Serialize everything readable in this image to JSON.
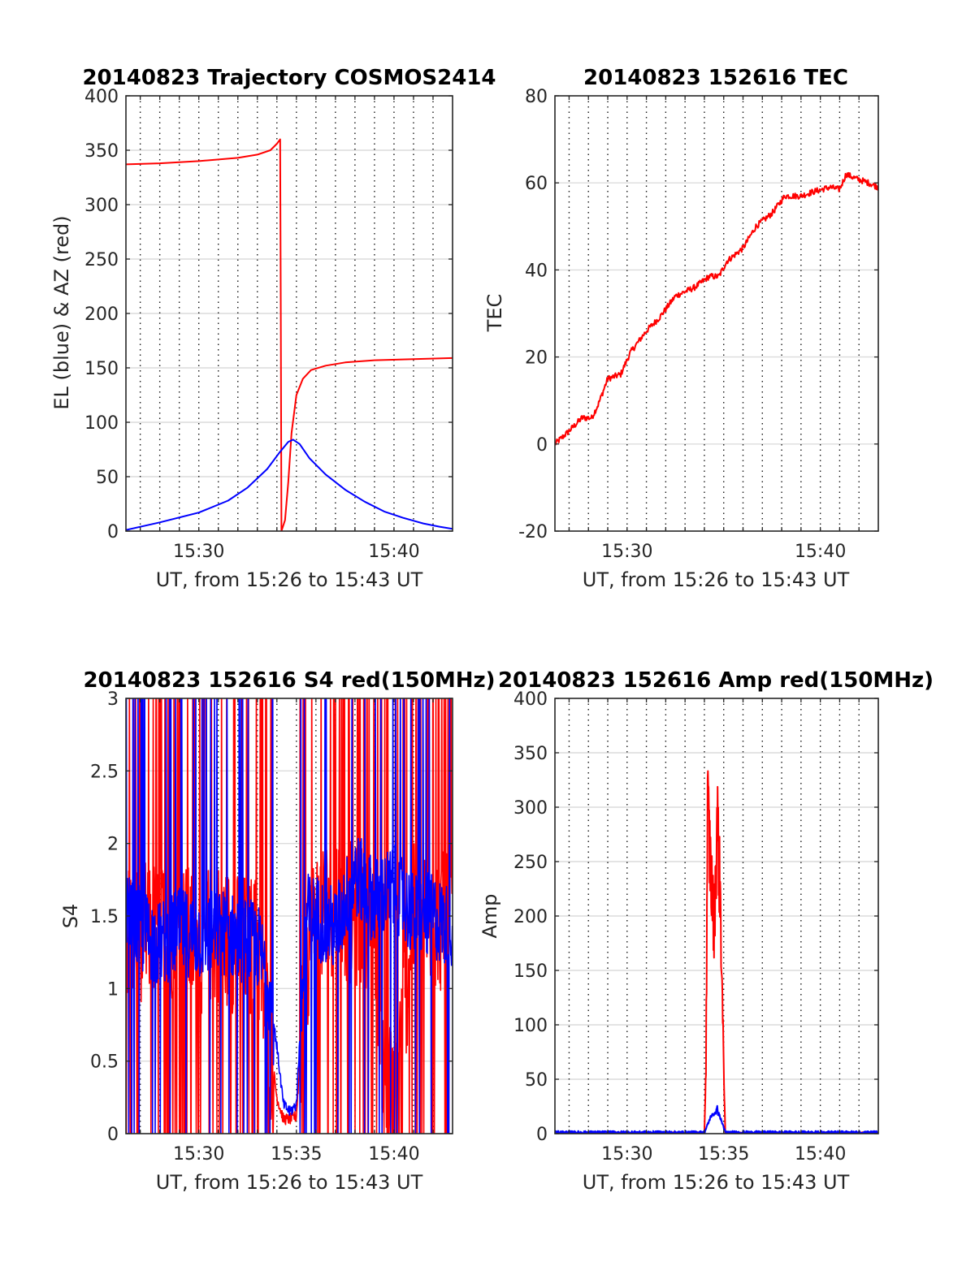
{
  "colors": {
    "red": "#ff0000",
    "blue": "#0000ff"
  },
  "panels": {
    "trajectory": {
      "title": "20140823 Trajectory COSMOS2414",
      "xlabel": "UT, from 15:26 to 15:43 UT",
      "ylabel": "EL (blue) & AZ (red)"
    },
    "tec": {
      "title": "20140823 152616 TEC",
      "xlabel": "UT, from 15:26 to 15:43 UT",
      "ylabel": "TEC"
    },
    "s4": {
      "title": "20140823 152616 S4 red(150MHz)",
      "xlabel": "UT, from 15:26 to 15:43 UT",
      "ylabel": "S4"
    },
    "amp": {
      "title": "20140823 152616 Amp red(150MHz)",
      "xlabel": "UT, from 15:26 to 15:43 UT",
      "ylabel": "Amp"
    }
  },
  "chart_data": [
    {
      "id": "trajectory",
      "type": "line",
      "title": "20140823 Trajectory COSMOS2414",
      "xlabel": "UT, from 15:26 to 15:43 UT",
      "ylabel": "EL (blue) & AZ (red)",
      "xlim": [
        "15:26:16",
        "15:43:00"
      ],
      "ylim": [
        0,
        400
      ],
      "yticks": [
        0,
        50,
        100,
        150,
        200,
        250,
        300,
        350,
        400
      ],
      "xticks": [
        "15:30",
        "15:40"
      ],
      "vgrid_minutes": [
        "15:27",
        "15:28",
        "15:29",
        "15:30",
        "15:31",
        "15:32",
        "15:33",
        "15:34",
        "15:35",
        "15:36",
        "15:37",
        "15:38",
        "15:39",
        "15:40",
        "15:41",
        "15:42"
      ],
      "hgrid": true,
      "series": [
        {
          "color": "red",
          "x": [
            "15:26:16",
            "15:28:00",
            "15:30:00",
            "15:32:00",
            "15:33:00",
            "15:33:40",
            "15:34:00",
            "15:34:10",
            "15:34:12",
            "15:34:14",
            "15:34:25",
            "15:34:35",
            "15:34:45",
            "15:35:00",
            "15:35:20",
            "15:35:45",
            "15:36:30",
            "15:37:30",
            "15:39:00",
            "15:41:00",
            "15:43:00"
          ],
          "y": [
            337,
            338,
            340,
            343,
            346,
            350,
            356,
            360,
            200,
            0,
            10,
            45,
            90,
            125,
            140,
            148,
            152,
            155,
            157,
            158,
            159
          ]
        },
        {
          "color": "blue",
          "x": [
            "15:26:16",
            "15:28:00",
            "15:30:00",
            "15:31:30",
            "15:32:30",
            "15:33:30",
            "15:34:10",
            "15:34:35",
            "15:34:50",
            "15:35:10",
            "15:35:40",
            "15:36:30",
            "15:37:30",
            "15:38:30",
            "15:39:30",
            "15:40:30",
            "15:41:30",
            "15:42:20",
            "15:43:00"
          ],
          "y": [
            1,
            8,
            17,
            28,
            40,
            57,
            73,
            82,
            84,
            80,
            67,
            52,
            38,
            27,
            18,
            12,
            7,
            4,
            2
          ]
        }
      ]
    },
    {
      "id": "tec",
      "type": "line",
      "title": "20140823 152616 TEC",
      "xlabel": "UT, from 15:26 to 15:43 UT",
      "ylabel": "TEC",
      "xlim": [
        "15:26:16",
        "15:43:00"
      ],
      "ylim": [
        -20,
        80
      ],
      "yticks": [
        -20,
        0,
        20,
        40,
        60,
        80
      ],
      "xticks": [
        "15:30",
        "15:40"
      ],
      "vgrid_minutes": [
        "15:27",
        "15:28",
        "15:29",
        "15:30",
        "15:31",
        "15:32",
        "15:33",
        "15:34",
        "15:35",
        "15:36",
        "15:37",
        "15:38",
        "15:39",
        "15:40",
        "15:41",
        "15:42"
      ],
      "hgrid": true,
      "series": [
        {
          "color": "red",
          "x": [
            "15:26:16",
            "15:27:00",
            "15:27:40",
            "15:28:10",
            "15:28:30",
            "15:29:00",
            "15:29:40",
            "15:30:10",
            "15:31:00",
            "15:31:40",
            "15:32:30",
            "15:33:30",
            "15:34:15",
            "15:34:45",
            "15:35:10",
            "15:36:00",
            "15:36:40",
            "15:37:30",
            "15:38:10",
            "15:39:00",
            "15:39:40",
            "15:40:30",
            "15:41:00",
            "15:41:20",
            "15:41:50",
            "15:42:30",
            "15:43:00"
          ],
          "y": [
            0,
            3,
            6,
            6,
            9,
            15,
            16,
            21,
            26,
            29,
            34,
            36,
            38.5,
            38.5,
            42,
            45,
            50,
            53,
            57,
            57,
            58,
            59,
            58.5,
            62,
            61,
            60,
            59
          ]
        }
      ]
    },
    {
      "id": "s4",
      "type": "line",
      "title": "20140823 152616 S4 red(150MHz)",
      "xlabel": "UT, from 15:26 to 15:43 UT",
      "ylabel": "S4",
      "xlim": [
        "15:26:16",
        "15:43:00"
      ],
      "ylim": [
        0,
        3
      ],
      "yticks": [
        0,
        0.5,
        1,
        1.5,
        2,
        2.5,
        3
      ],
      "xticks": [
        "15:30",
        "15:35",
        "15:40"
      ],
      "vgrid_minutes": [
        "15:27",
        "15:28",
        "15:29",
        "15:30",
        "15:31",
        "15:32",
        "15:33",
        "15:34",
        "15:35",
        "15:36",
        "15:37",
        "15:38",
        "15:39",
        "15:40",
        "15:41",
        "15:42"
      ],
      "hgrid": true,
      "series": [
        {
          "color": "red",
          "x": [
            "15:26:16",
            "15:27:00",
            "15:28:00",
            "15:29:00",
            "15:30:00",
            "15:31:00",
            "15:32:00",
            "15:33:00",
            "15:33:40",
            "15:34:00",
            "15:34:20",
            "15:34:40",
            "15:35:00",
            "15:35:30",
            "15:36:00",
            "15:37:00",
            "15:38:00",
            "15:39:00",
            "15:39:30",
            "15:40:00",
            "15:41:00",
            "15:42:00",
            "15:43:00"
          ],
          "y": [
            1.4,
            1.4,
            1.4,
            1.4,
            1.3,
            1.4,
            1.3,
            1.3,
            0.6,
            0.25,
            0.1,
            0.1,
            0.12,
            1.2,
            1.5,
            1.6,
            1.5,
            1.5,
            0.4,
            0.2,
            1.5,
            1.5,
            1.4
          ]
        },
        {
          "color": "blue",
          "x": [
            "15:26:16",
            "15:27:00",
            "15:28:00",
            "15:29:00",
            "15:30:00",
            "15:31:00",
            "15:32:00",
            "15:33:00",
            "15:33:30",
            "15:34:00",
            "15:34:20",
            "15:34:40",
            "15:35:00",
            "15:35:30",
            "15:36:00",
            "15:37:00",
            "15:38:00",
            "15:39:00",
            "15:40:00",
            "15:41:00",
            "15:42:00",
            "15:43:00"
          ],
          "y": [
            1.5,
            1.4,
            1.3,
            1.4,
            1.35,
            1.4,
            1.35,
            1.3,
            1.1,
            0.6,
            0.2,
            0.15,
            0.2,
            1.5,
            1.5,
            1.4,
            1.8,
            1.6,
            1.7,
            1.5,
            1.5,
            1.4
          ]
        }
      ]
    },
    {
      "id": "amp",
      "type": "line",
      "title": "20140823 152616 Amp red(150MHz)",
      "xlabel": "UT, from 15:26 to 15:43 UT",
      "ylabel": "Amp",
      "xlim": [
        "15:26:16",
        "15:43:00"
      ],
      "ylim": [
        0,
        400
      ],
      "yticks": [
        0,
        50,
        100,
        150,
        200,
        250,
        300,
        350,
        400
      ],
      "xticks": [
        "15:30",
        "15:35",
        "15:40"
      ],
      "vgrid_minutes": [
        "15:27",
        "15:28",
        "15:29",
        "15:30",
        "15:31",
        "15:32",
        "15:33",
        "15:34",
        "15:35",
        "15:36",
        "15:37",
        "15:38",
        "15:39",
        "15:40",
        "15:41",
        "15:42"
      ],
      "hgrid": true,
      "series": [
        {
          "color": "red",
          "x": [
            "15:26:16",
            "15:34:00",
            "15:34:05",
            "15:34:10",
            "15:34:20",
            "15:34:30",
            "15:34:40",
            "15:34:50",
            "15:34:58",
            "15:35:05",
            "15:43:00"
          ],
          "y": [
            0,
            0,
            60,
            300,
            240,
            190,
            290,
            210,
            90,
            0,
            0
          ]
        },
        {
          "color": "blue",
          "x": [
            "15:26:16",
            "15:34:00",
            "15:34:10",
            "15:34:20",
            "15:34:30",
            "15:34:40",
            "15:34:50",
            "15:35:00",
            "15:35:05",
            "15:43:00"
          ],
          "y": [
            1,
            1,
            8,
            16,
            18,
            22,
            14,
            6,
            1,
            1
          ]
        }
      ]
    }
  ]
}
